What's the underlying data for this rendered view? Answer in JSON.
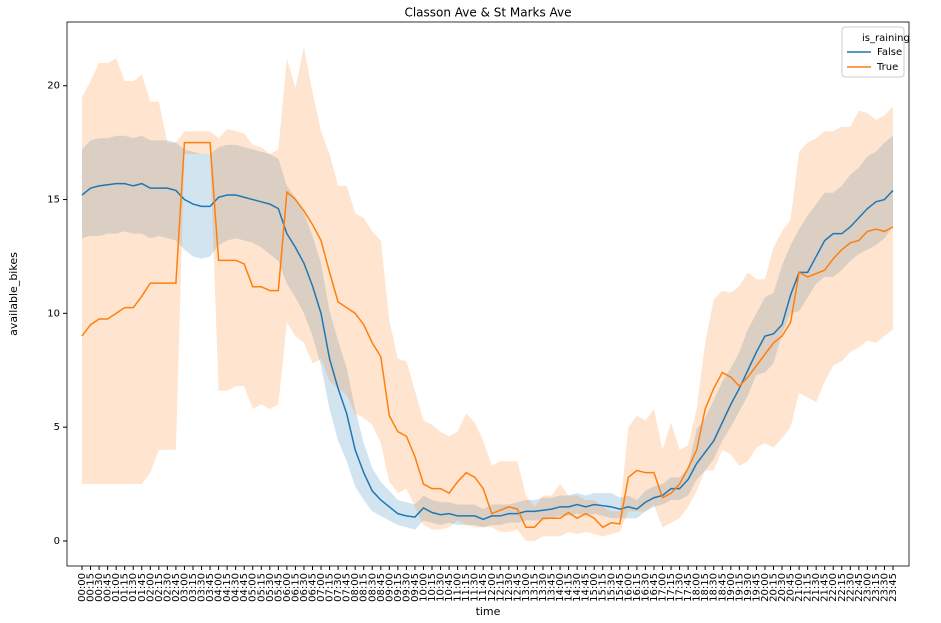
{
  "chart_data": {
    "type": "line",
    "title": "Classon Ave & St Marks Ave",
    "x_label": "time",
    "y_label": "available_bikes",
    "legend_title": "is_raining",
    "legend_position": "upper right",
    "categories": [
      "00:00",
      "00:15",
      "00:30",
      "00:45",
      "01:00",
      "01:15",
      "01:30",
      "01:45",
      "02:00",
      "02:15",
      "02:30",
      "02:45",
      "03:00",
      "03:15",
      "03:30",
      "03:45",
      "04:00",
      "04:15",
      "04:30",
      "04:45",
      "05:00",
      "05:15",
      "05:30",
      "05:45",
      "06:00",
      "06:15",
      "06:30",
      "06:45",
      "07:00",
      "07:15",
      "07:30",
      "07:45",
      "08:00",
      "08:15",
      "08:30",
      "08:45",
      "09:00",
      "09:15",
      "09:30",
      "09:45",
      "10:00",
      "10:15",
      "10:30",
      "10:45",
      "11:00",
      "11:15",
      "11:30",
      "11:45",
      "12:00",
      "12:15",
      "12:30",
      "12:45",
      "13:00",
      "13:15",
      "13:30",
      "13:45",
      "14:00",
      "14:15",
      "14:30",
      "14:45",
      "15:00",
      "15:15",
      "15:30",
      "15:45",
      "16:00",
      "16:15",
      "16:30",
      "16:45",
      "17:00",
      "17:15",
      "17:30",
      "17:45",
      "18:00",
      "18:15",
      "18:30",
      "18:45",
      "19:00",
      "19:15",
      "19:30",
      "19:45",
      "20:00",
      "20:15",
      "20:30",
      "20:45",
      "21:00",
      "21:15",
      "21:30",
      "21:45",
      "22:00",
      "22:15",
      "22:30",
      "22:45",
      "23:00",
      "23:15",
      "23:30",
      "23:45"
    ],
    "ylim": [
      -1.1,
      22.8
    ],
    "yticks": [
      0,
      5,
      10,
      15,
      20
    ],
    "series": [
      {
        "name": "False",
        "color": "#1f77b4",
        "values": [
          15.2,
          15.5,
          15.6,
          15.65,
          15.7,
          15.7,
          15.6,
          15.7,
          15.5,
          15.5,
          15.5,
          15.4,
          15.0,
          14.8,
          14.7,
          14.7,
          15.1,
          15.2,
          15.2,
          15.1,
          15.0,
          14.9,
          14.8,
          14.6,
          13.5,
          12.9,
          12.2,
          11.2,
          10.0,
          8.0,
          6.7,
          5.6,
          4.0,
          3.0,
          2.2,
          1.8,
          1.5,
          1.2,
          1.1,
          1.05,
          1.45,
          1.25,
          1.15,
          1.2,
          1.1,
          1.1,
          1.1,
          0.95,
          1.1,
          1.1,
          1.2,
          1.2,
          1.3,
          1.3,
          1.35,
          1.4,
          1.5,
          1.5,
          1.6,
          1.5,
          1.6,
          1.55,
          1.5,
          1.4,
          1.5,
          1.4,
          1.7,
          1.9,
          2.0,
          2.3,
          2.3,
          2.7,
          3.4,
          3.9,
          4.4,
          5.2,
          6.0,
          6.7,
          7.5,
          8.3,
          9.0,
          9.1,
          9.5,
          10.8,
          11.8,
          11.8,
          12.5,
          13.2,
          13.5,
          13.5,
          13.8,
          14.2,
          14.6,
          14.9,
          15.0,
          15.4
        ],
        "ci_lower": [
          13.3,
          13.4,
          13.4,
          13.5,
          13.5,
          13.6,
          13.5,
          13.5,
          13.3,
          13.4,
          13.3,
          13.2,
          12.8,
          12.5,
          12.4,
          12.5,
          13.0,
          13.2,
          13.3,
          13.2,
          13.1,
          12.9,
          12.6,
          12.3,
          11.3,
          10.7,
          10.0,
          9.0,
          7.7,
          5.8,
          4.4,
          3.5,
          2.4,
          1.8,
          1.3,
          1.1,
          0.9,
          0.7,
          0.6,
          0.5,
          0.9,
          0.8,
          0.7,
          0.8,
          0.7,
          0.7,
          0.7,
          0.6,
          0.7,
          0.7,
          0.8,
          0.8,
          0.9,
          0.9,
          0.9,
          1.0,
          1.1,
          1.1,
          1.2,
          1.1,
          1.2,
          1.1,
          1.0,
          1.0,
          1.0,
          1.0,
          1.3,
          1.5,
          1.6,
          1.8,
          1.8,
          2.0,
          2.7,
          3.1,
          3.6,
          4.4,
          5.0,
          5.7,
          6.4,
          7.3,
          7.4,
          7.8,
          9.1,
          10.0,
          10.1,
          10.7,
          11.3,
          11.6,
          11.6,
          11.9,
          12.3,
          12.6,
          12.8,
          13.0,
          13.3,
          13.8
        ],
        "ci_upper": [
          17.2,
          17.6,
          17.7,
          17.7,
          17.8,
          17.8,
          17.7,
          17.8,
          17.6,
          17.6,
          17.6,
          17.5,
          17.2,
          17.1,
          17.0,
          17.0,
          17.3,
          17.4,
          17.4,
          17.3,
          17.2,
          17.1,
          17.0,
          16.8,
          15.6,
          15.1,
          14.4,
          13.4,
          12.2,
          10.1,
          8.8,
          7.6,
          5.8,
          4.3,
          3.2,
          2.6,
          2.2,
          1.8,
          1.7,
          1.6,
          2.0,
          1.8,
          1.7,
          1.7,
          1.6,
          1.6,
          1.6,
          1.4,
          1.6,
          1.6,
          1.6,
          1.7,
          1.8,
          1.8,
          1.9,
          1.9,
          2.0,
          2.0,
          2.1,
          2.0,
          2.1,
          2.1,
          2.1,
          1.9,
          2.0,
          1.8,
          2.2,
          2.4,
          2.5,
          2.8,
          2.8,
          3.2,
          4.9,
          5.4,
          6.2,
          7.0,
          7.6,
          8.3,
          9.3,
          10.0,
          10.7,
          10.9,
          12.1,
          13.0,
          13.7,
          14.3,
          14.8,
          15.3,
          15.3,
          15.6,
          16.1,
          16.4,
          16.9,
          17.1,
          17.5,
          17.8
        ]
      },
      {
        "name": "True",
        "color": "#ff7f0e",
        "values": [
          9.0,
          9.5,
          9.75,
          9.75,
          10.0,
          10.25,
          10.25,
          10.75,
          11.33,
          11.33,
          11.33,
          11.33,
          17.5,
          17.5,
          17.5,
          17.5,
          12.33,
          12.33,
          12.33,
          12.17,
          11.17,
          11.17,
          11.0,
          11.0,
          15.33,
          15.0,
          14.5,
          13.9,
          13.2,
          11.8,
          10.5,
          10.25,
          10.0,
          9.5,
          8.7,
          8.1,
          5.5,
          4.8,
          4.6,
          3.7,
          2.5,
          2.3,
          2.3,
          2.1,
          2.6,
          3.0,
          2.8,
          2.3,
          1.2,
          1.35,
          1.5,
          1.4,
          0.6,
          0.6,
          1.0,
          1.0,
          1.0,
          1.25,
          1.0,
          1.2,
          1.0,
          0.6,
          0.8,
          0.75,
          2.8,
          3.1,
          3.0,
          3.0,
          1.9,
          2.1,
          2.5,
          3.2,
          4.0,
          5.8,
          6.7,
          7.4,
          7.2,
          6.8,
          7.2,
          7.7,
          8.2,
          8.7,
          9.0,
          9.6,
          11.8,
          11.6,
          11.75,
          11.9,
          12.4,
          12.8,
          13.1,
          13.2,
          13.6,
          13.7,
          13.6,
          13.8
        ],
        "ci_lower": [
          2.5,
          2.5,
          2.5,
          2.5,
          2.5,
          2.5,
          2.5,
          2.5,
          3.0,
          4.0,
          4.0,
          4.0,
          17.0,
          17.0,
          17.0,
          17.0,
          6.6,
          6.6,
          6.8,
          6.8,
          5.8,
          6.0,
          5.8,
          6.0,
          9.6,
          9.0,
          8.7,
          7.8,
          8.0,
          7.0,
          6.7,
          6.4,
          5.6,
          5.4,
          5.1,
          4.3,
          2.6,
          2.1,
          2.3,
          1.5,
          0.7,
          0.5,
          0.5,
          0.6,
          0.9,
          0.7,
          0.6,
          0.6,
          0.6,
          0.4,
          0.4,
          0.5,
          0.0,
          0.0,
          0.2,
          0.2,
          0.2,
          0.4,
          0.3,
          0.4,
          0.3,
          0.2,
          0.3,
          0.4,
          1.3,
          1.3,
          1.3,
          1.6,
          0.6,
          0.8,
          1.0,
          1.5,
          2.2,
          3.1,
          3.1,
          4.0,
          3.8,
          3.3,
          3.5,
          4.1,
          4.3,
          4.1,
          4.5,
          5.0,
          6.5,
          6.3,
          6.1,
          7.0,
          7.7,
          7.9,
          8.3,
          8.5,
          8.8,
          8.7,
          9.0,
          9.3
        ],
        "ci_upper": [
          19.5,
          20.2,
          21.0,
          21.0,
          21.2,
          20.2,
          20.2,
          20.5,
          19.3,
          19.3,
          17.5,
          17.5,
          18.0,
          18.0,
          18.0,
          18.0,
          17.7,
          18.1,
          18.0,
          17.9,
          17.4,
          17.3,
          17.0,
          17.2,
          21.2,
          19.9,
          21.7,
          19.7,
          18.0,
          17.0,
          15.6,
          15.6,
          14.4,
          14.2,
          13.6,
          13.2,
          9.7,
          8.0,
          7.9,
          6.6,
          5.3,
          5.1,
          4.8,
          4.6,
          4.8,
          5.6,
          5.2,
          4.4,
          3.3,
          3.5,
          3.5,
          3.5,
          2.0,
          1.5,
          2.0,
          2.0,
          2.5,
          2.0,
          2.0,
          1.8,
          1.8,
          1.5,
          1.3,
          1.3,
          5.0,
          5.5,
          5.3,
          5.8,
          4.0,
          5.2,
          4.0,
          4.2,
          5.8,
          8.7,
          10.6,
          11.0,
          10.9,
          11.2,
          11.8,
          11.5,
          11.5,
          12.9,
          13.6,
          14.1,
          17.1,
          17.5,
          17.7,
          18.0,
          18.0,
          18.2,
          18.2,
          18.9,
          18.8,
          18.5,
          18.7,
          19.1
        ]
      }
    ]
  }
}
